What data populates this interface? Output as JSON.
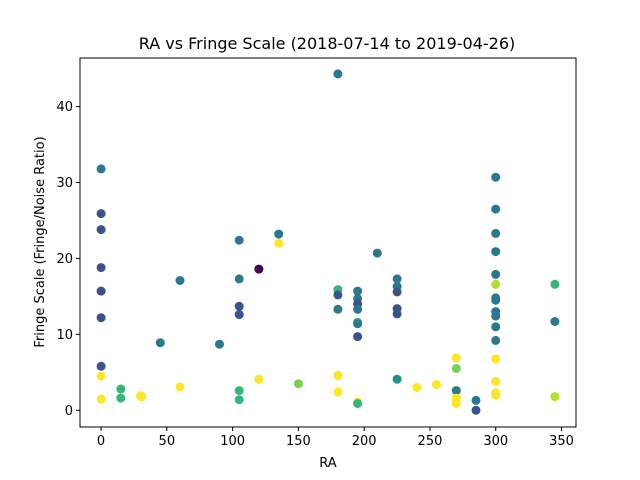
{
  "chart_data": {
    "type": "scatter",
    "title": "RA vs Fringe Scale (2018-07-14 to 2019-04-26)",
    "xlabel": "RA",
    "ylabel": "Fringe Scale (Fringe/Noise Ratio)",
    "xlim": [
      -16,
      361
    ],
    "ylim": [
      -2.2,
      46.4
    ],
    "xticks": [
      0,
      50,
      100,
      150,
      200,
      250,
      300,
      350
    ],
    "yticks": [
      0,
      10,
      20,
      30,
      40
    ],
    "grid": false,
    "colormap": "viridis",
    "points": [
      {
        "x": 0,
        "y": 31.8,
        "color": "#2a788e"
      },
      {
        "x": 0,
        "y": 25.9,
        "color": "#3b528b"
      },
      {
        "x": 0,
        "y": 23.8,
        "color": "#3b528b"
      },
      {
        "x": 0,
        "y": 18.8,
        "color": "#3b528b"
      },
      {
        "x": 0,
        "y": 15.7,
        "color": "#3b528b"
      },
      {
        "x": 0,
        "y": 12.2,
        "color": "#3b528b"
      },
      {
        "x": 0,
        "y": 5.8,
        "color": "#3b528b"
      },
      {
        "x": 0,
        "y": 4.5,
        "color": "#fde725"
      },
      {
        "x": 0,
        "y": 1.5,
        "color": "#fde725"
      },
      {
        "x": 15,
        "y": 2.8,
        "color": "#35b779"
      },
      {
        "x": 15,
        "y": 1.6,
        "color": "#35b779"
      },
      {
        "x": 30,
        "y": 1.9,
        "color": "#fde725"
      },
      {
        "x": 31,
        "y": 1.8,
        "color": "#fde725"
      },
      {
        "x": 45,
        "y": 8.9,
        "color": "#2a788e"
      },
      {
        "x": 60,
        "y": 17.1,
        "color": "#2a788e"
      },
      {
        "x": 60,
        "y": 3.1,
        "color": "#fde725"
      },
      {
        "x": 90,
        "y": 8.7,
        "color": "#2a788e"
      },
      {
        "x": 105,
        "y": 22.4,
        "color": "#2a788e"
      },
      {
        "x": 105,
        "y": 17.3,
        "color": "#2a788e"
      },
      {
        "x": 105,
        "y": 13.7,
        "color": "#3b528b"
      },
      {
        "x": 105,
        "y": 12.6,
        "color": "#3b528b"
      },
      {
        "x": 105,
        "y": 2.6,
        "color": "#35b779"
      },
      {
        "x": 105,
        "y": 1.4,
        "color": "#35b779"
      },
      {
        "x": 120,
        "y": 18.6,
        "color": "#440154"
      },
      {
        "x": 120,
        "y": 4.1,
        "color": "#fde725"
      },
      {
        "x": 135,
        "y": 23.2,
        "color": "#2a788e"
      },
      {
        "x": 135,
        "y": 22.0,
        "color": "#fde725"
      },
      {
        "x": 150,
        "y": 3.5,
        "color": "#7ad151"
      },
      {
        "x": 180,
        "y": 44.3,
        "color": "#2a788e"
      },
      {
        "x": 180,
        "y": 15.9,
        "color": "#35b779"
      },
      {
        "x": 180,
        "y": 15.2,
        "color": "#3b528b"
      },
      {
        "x": 180,
        "y": 13.3,
        "color": "#2a788e"
      },
      {
        "x": 180,
        "y": 4.6,
        "color": "#fde725"
      },
      {
        "x": 180,
        "y": 2.4,
        "color": "#fde725"
      },
      {
        "x": 195,
        "y": 15.7,
        "color": "#2a788e"
      },
      {
        "x": 195,
        "y": 14.7,
        "color": "#2a788e"
      },
      {
        "x": 195,
        "y": 14.0,
        "color": "#3b528b"
      },
      {
        "x": 195,
        "y": 13.3,
        "color": "#2a788e"
      },
      {
        "x": 195,
        "y": 11.6,
        "color": "#35b779"
      },
      {
        "x": 195,
        "y": 11.4,
        "color": "#2a788e"
      },
      {
        "x": 195,
        "y": 9.7,
        "color": "#3b528b"
      },
      {
        "x": 195,
        "y": 1.1,
        "color": "#fde725"
      },
      {
        "x": 195,
        "y": 0.9,
        "color": "#35b779"
      },
      {
        "x": 210,
        "y": 20.7,
        "color": "#2a788e"
      },
      {
        "x": 225,
        "y": 17.3,
        "color": "#2a788e"
      },
      {
        "x": 225,
        "y": 16.3,
        "color": "#2a788e"
      },
      {
        "x": 225,
        "y": 15.6,
        "color": "#3b528b"
      },
      {
        "x": 225,
        "y": 13.4,
        "color": "#3b528b"
      },
      {
        "x": 225,
        "y": 12.7,
        "color": "#3b528b"
      },
      {
        "x": 225,
        "y": 4.1,
        "color": "#21918c"
      },
      {
        "x": 240,
        "y": 3.0,
        "color": "#fde725"
      },
      {
        "x": 255,
        "y": 3.4,
        "color": "#fde725"
      },
      {
        "x": 270,
        "y": 6.9,
        "color": "#fde725"
      },
      {
        "x": 270,
        "y": 5.5,
        "color": "#7ad151"
      },
      {
        "x": 270,
        "y": 2.6,
        "color": "#2a788e"
      },
      {
        "x": 270,
        "y": 1.6,
        "color": "#fde725"
      },
      {
        "x": 270,
        "y": 0.9,
        "color": "#fde725"
      },
      {
        "x": 285,
        "y": 1.3,
        "color": "#2a788e"
      },
      {
        "x": 285,
        "y": 0.0,
        "color": "#3b528b"
      },
      {
        "x": 300,
        "y": 30.7,
        "color": "#2a788e"
      },
      {
        "x": 300,
        "y": 26.5,
        "color": "#2a788e"
      },
      {
        "x": 300,
        "y": 23.3,
        "color": "#2a788e"
      },
      {
        "x": 300,
        "y": 20.9,
        "color": "#2a788e"
      },
      {
        "x": 300,
        "y": 17.9,
        "color": "#2a788e"
      },
      {
        "x": 300,
        "y": 16.6,
        "color": "#b5de2b"
      },
      {
        "x": 300,
        "y": 14.8,
        "color": "#2a788e"
      },
      {
        "x": 300,
        "y": 14.5,
        "color": "#2a788e"
      },
      {
        "x": 300,
        "y": 13.0,
        "color": "#2a788e"
      },
      {
        "x": 300,
        "y": 12.4,
        "color": "#2a788e"
      },
      {
        "x": 300,
        "y": 11.0,
        "color": "#2a788e"
      },
      {
        "x": 300,
        "y": 9.2,
        "color": "#2a788e"
      },
      {
        "x": 300,
        "y": 6.8,
        "color": "#fde725"
      },
      {
        "x": 300,
        "y": 3.8,
        "color": "#fde725"
      },
      {
        "x": 300,
        "y": 2.3,
        "color": "#fde725"
      },
      {
        "x": 300,
        "y": 2.0,
        "color": "#fde725"
      },
      {
        "x": 345,
        "y": 16.6,
        "color": "#35b779"
      },
      {
        "x": 345,
        "y": 11.7,
        "color": "#2a788e"
      },
      {
        "x": 345,
        "y": 1.8,
        "color": "#b5de2b"
      }
    ]
  }
}
